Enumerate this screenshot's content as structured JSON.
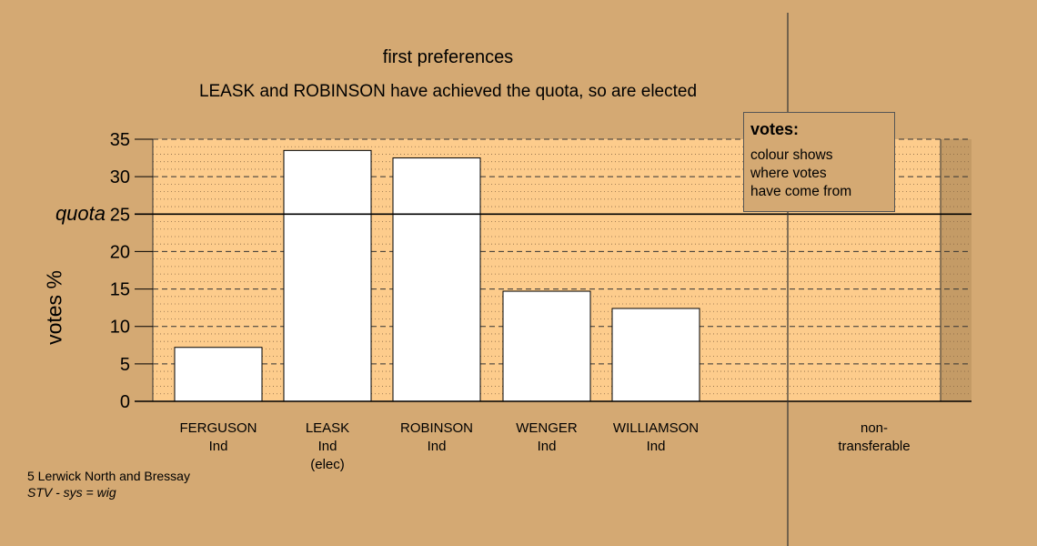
{
  "titles": {
    "line1": "first preferences",
    "line2": "LEASK and ROBINSON have achieved the quota, so are elected"
  },
  "axis": {
    "ylabel": "votes %",
    "quota_label": "quota"
  },
  "legend": {
    "title": "votes:",
    "body": [
      "colour shows",
      "where votes",
      "have come from"
    ]
  },
  "candidates": [
    {
      "name": "FERGUSON",
      "party": "Ind",
      "note": ""
    },
    {
      "name": "LEASK",
      "party": "Ind",
      "note": "(elec)"
    },
    {
      "name": "ROBINSON",
      "party": "Ind",
      "note": ""
    },
    {
      "name": "WENGER",
      "party": "Ind",
      "note": ""
    },
    {
      "name": "WILLIAMSON",
      "party": "Ind",
      "note": ""
    }
  ],
  "nontransferable": {
    "line1": "non-",
    "line2": "transferable"
  },
  "footer": {
    "line1": "5 Lerwick North and Bressay",
    "line2": "STV - sys = wig"
  },
  "colors": {
    "background": "#d4a973",
    "plot": "#fdcc8c",
    "bar": "#ffffff"
  },
  "chart_data": {
    "type": "bar",
    "categories": [
      "FERGUSON",
      "LEASK",
      "ROBINSON",
      "WENGER",
      "WILLIAMSON",
      "non-transferable"
    ],
    "values": [
      7.2,
      33.5,
      32.5,
      14.7,
      12.4,
      0
    ],
    "ylabel": "votes %",
    "ylim": [
      0,
      35
    ],
    "yticks": [
      0,
      5,
      10,
      15,
      20,
      25,
      30,
      35
    ],
    "quota": 25,
    "grid": true
  }
}
